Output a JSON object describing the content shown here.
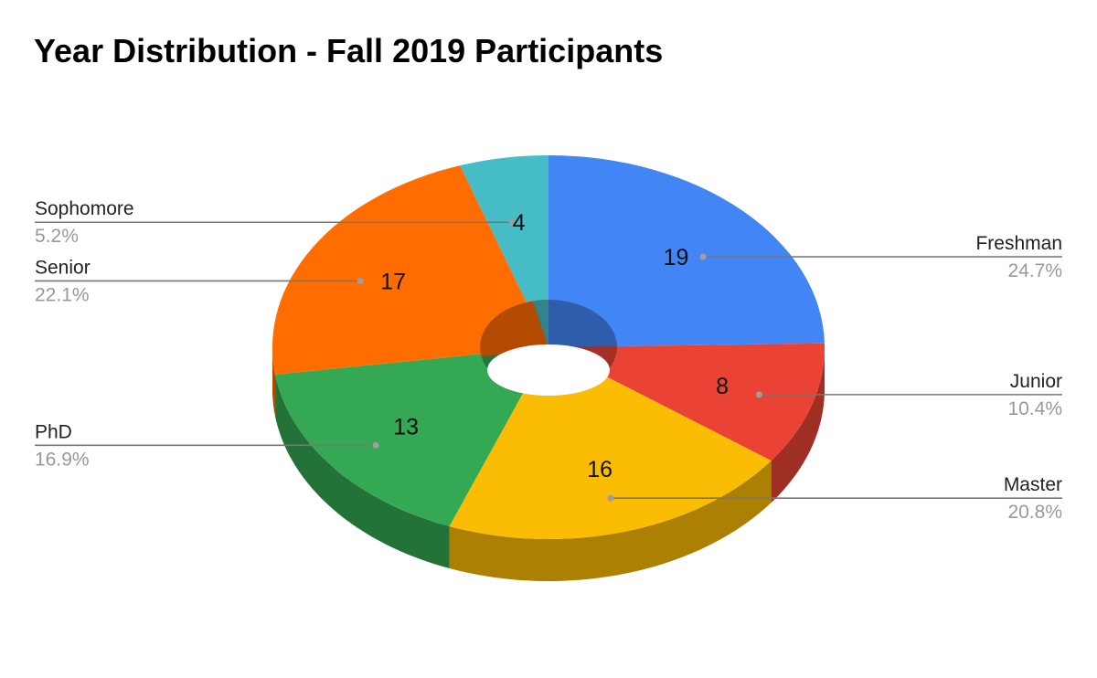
{
  "chart_data": {
    "type": "pie",
    "style": "3d-donut",
    "title": "Year Distribution - Fall 2019 Participants",
    "legend": "none",
    "labels": [
      "Freshman",
      "Junior",
      "Master",
      "PhD",
      "Senior",
      "Sophomore"
    ],
    "values": [
      19,
      8,
      16,
      13,
      17,
      4
    ],
    "percent_labels": [
      "24.7%",
      "10.4%",
      "20.8%",
      "16.9%",
      "22.1%",
      "5.2%"
    ],
    "value_labels": [
      "19",
      "8",
      "16",
      "13",
      "17",
      "4"
    ],
    "colors": [
      "#4285F4",
      "#EA4335",
      "#FBBC04",
      "#34A853",
      "#FF6D01",
      "#46BDC6"
    ],
    "callout_sides": [
      "right",
      "right",
      "right",
      "left",
      "left",
      "left"
    ]
  }
}
